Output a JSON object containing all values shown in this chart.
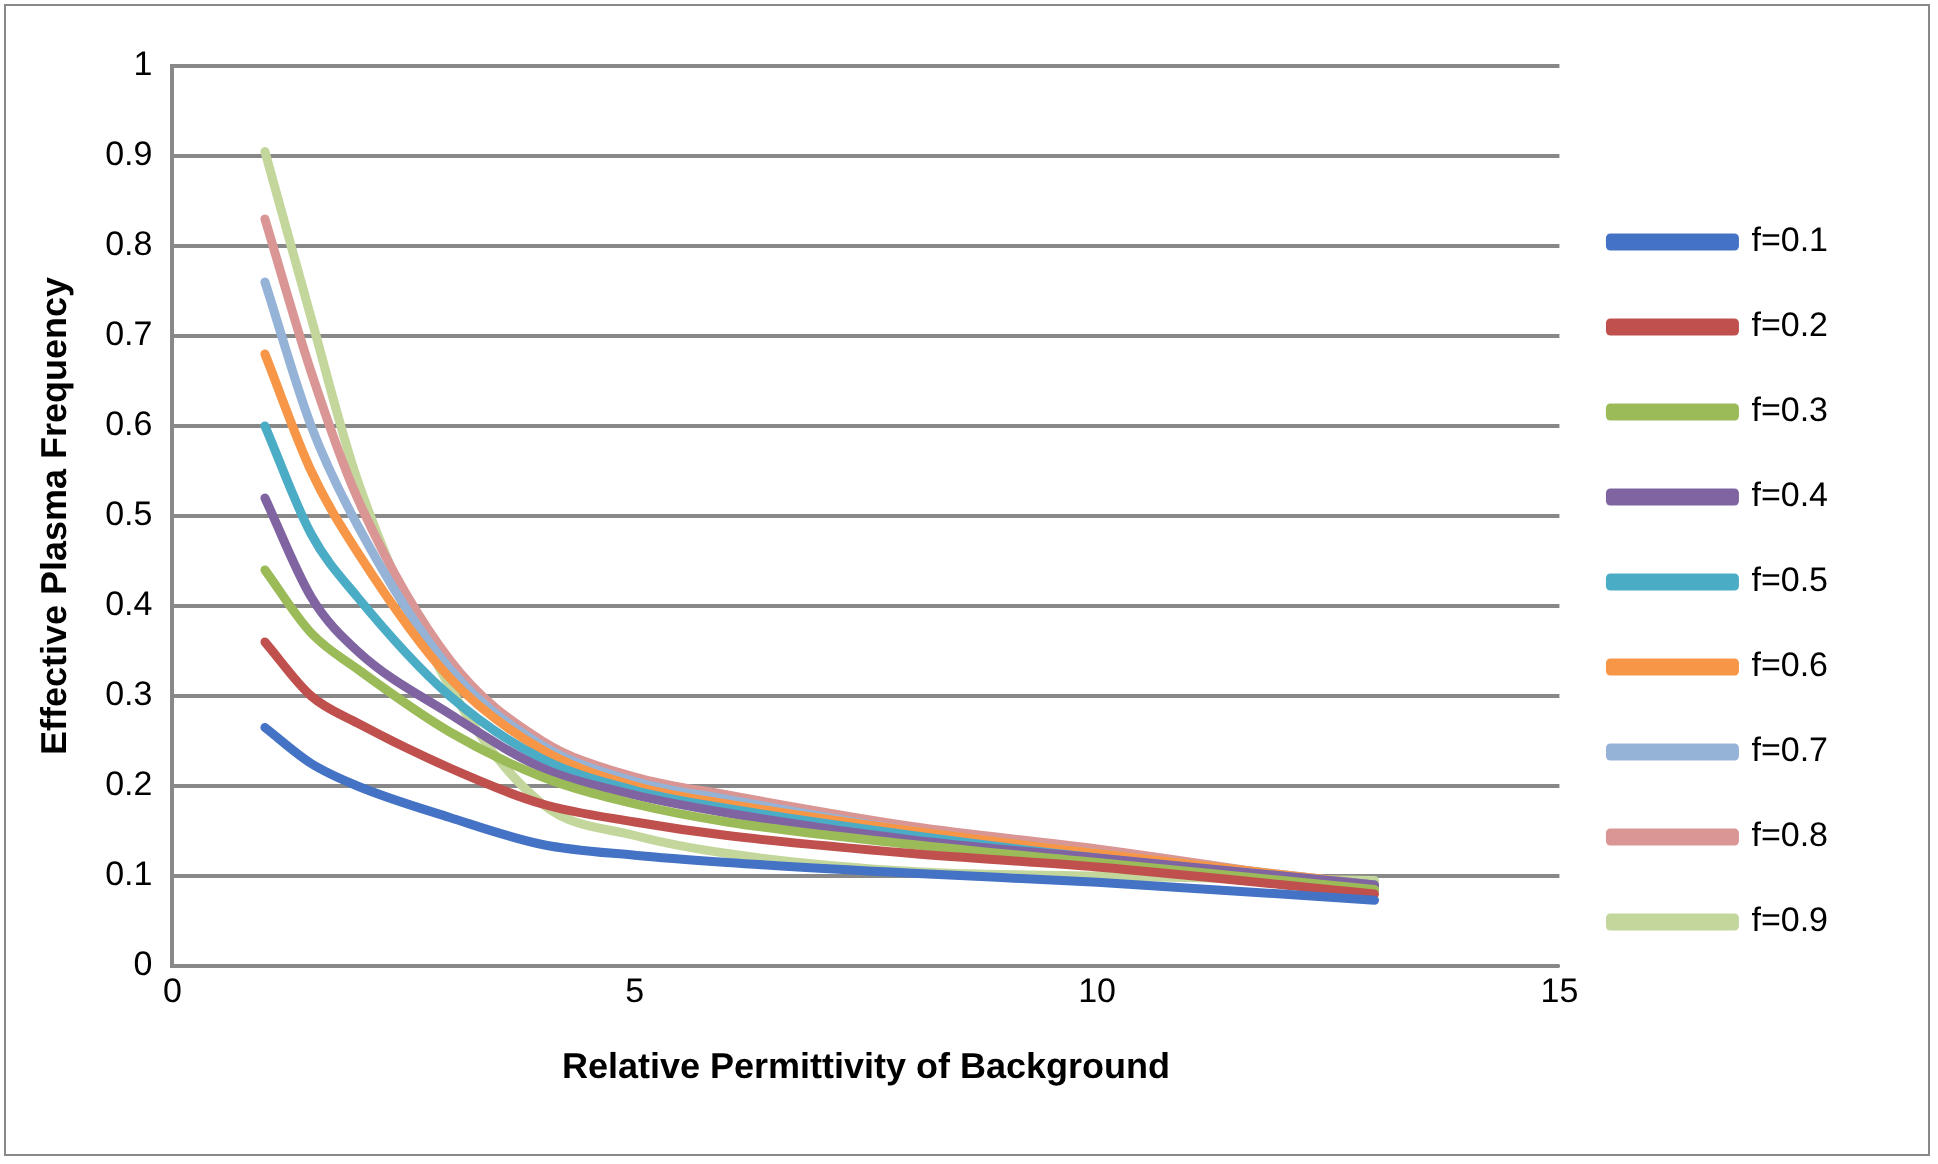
{
  "chart_data": {
    "type": "line",
    "xlabel": "Relative Permittivity of Background",
    "ylabel": "Effective Plasma Frequency",
    "xlim": [
      0,
      15
    ],
    "xticks": [
      0,
      5,
      10,
      15
    ],
    "ylim": [
      0,
      1
    ],
    "yticks": [
      0,
      0.1,
      0.2,
      0.3,
      0.4,
      0.5,
      0.6,
      0.7,
      0.8,
      0.9,
      1
    ],
    "grid": "y",
    "legend": "right",
    "marker": "none",
    "line_style": "solid",
    "x": [
      1,
      1.5,
      2,
      3,
      4,
      5,
      6,
      8,
      10,
      13
    ],
    "series": [
      {
        "name": "f=0.1",
        "color": "#4472c4",
        "values": [
          0.265,
          0.225,
          0.2,
          0.165,
          0.135,
          0.123,
          0.115,
          0.103,
          0.093,
          0.073
        ]
      },
      {
        "name": "f=0.2",
        "color": "#c0504d",
        "values": [
          0.36,
          0.3,
          0.27,
          0.22,
          0.18,
          0.16,
          0.145,
          0.125,
          0.11,
          0.08
        ]
      },
      {
        "name": "f=0.3",
        "color": "#9bbb59",
        "values": [
          0.44,
          0.37,
          0.33,
          0.26,
          0.21,
          0.18,
          0.16,
          0.135,
          0.115,
          0.085
        ]
      },
      {
        "name": "f=0.4",
        "color": "#8064a2",
        "values": [
          0.52,
          0.41,
          0.35,
          0.28,
          0.22,
          0.19,
          0.17,
          0.14,
          0.12,
          0.09
        ]
      },
      {
        "name": "f=0.5",
        "color": "#4bacc6",
        "values": [
          0.6,
          0.48,
          0.41,
          0.3,
          0.23,
          0.195,
          0.175,
          0.145,
          0.12,
          0.09
        ]
      },
      {
        "name": "f=0.6",
        "color": "#f79646",
        "values": [
          0.68,
          0.55,
          0.46,
          0.32,
          0.24,
          0.2,
          0.18,
          0.15,
          0.125,
          0.09
        ]
      },
      {
        "name": "f=0.7",
        "color": "#95b3d7",
        "values": [
          0.76,
          0.6,
          0.49,
          0.33,
          0.245,
          0.205,
          0.185,
          0.15,
          0.125,
          0.09
        ]
      },
      {
        "name": "f=0.8",
        "color": "#d99694",
        "values": [
          0.83,
          0.66,
          0.52,
          0.34,
          0.25,
          0.21,
          0.19,
          0.155,
          0.13,
          0.085
        ]
      },
      {
        "name": "f=0.9",
        "color": "#c3d69b",
        "values": [
          0.905,
          0.72,
          0.54,
          0.31,
          0.18,
          0.145,
          0.125,
          0.105,
          0.1,
          0.095
        ]
      }
    ]
  }
}
